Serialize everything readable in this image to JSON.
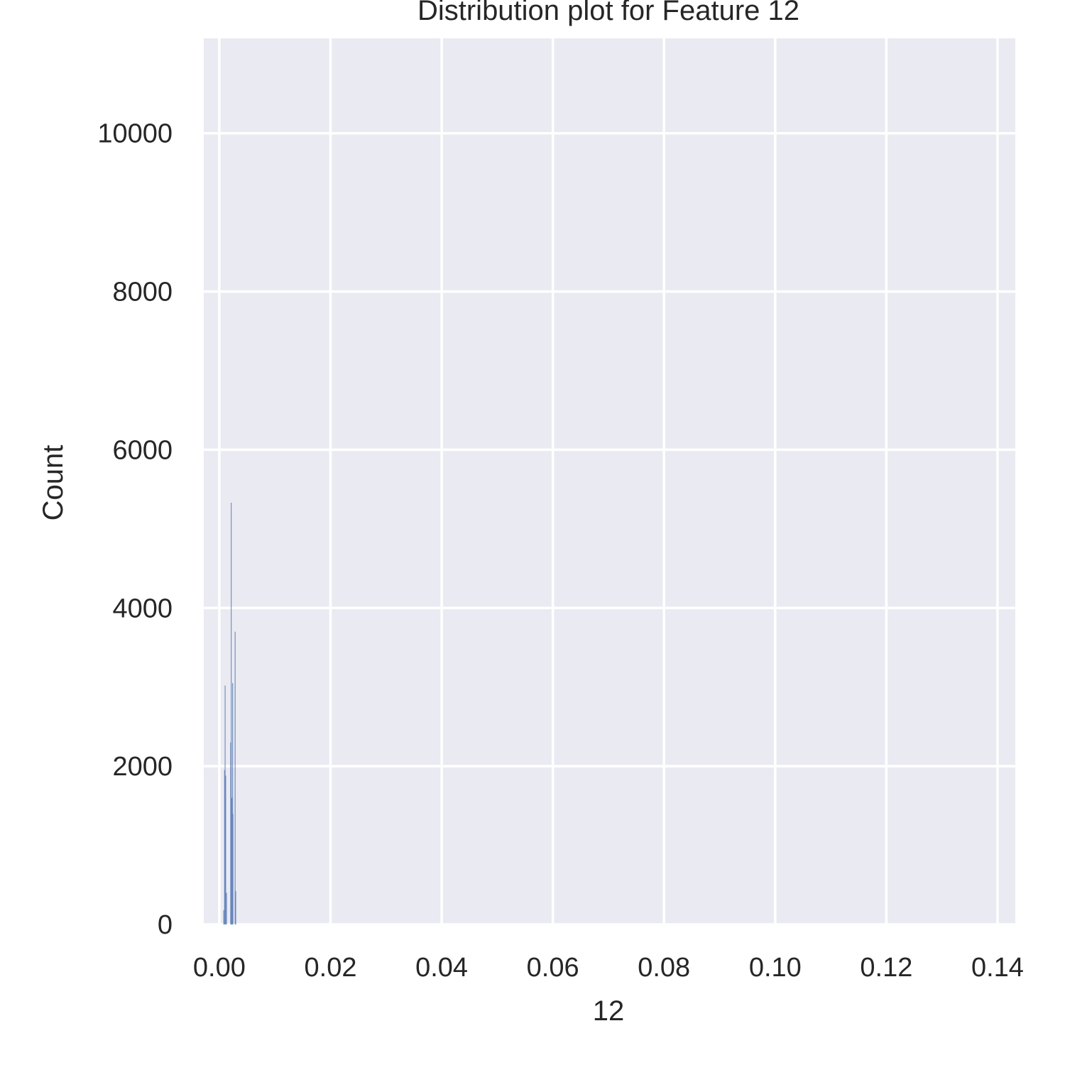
{
  "chart_data": {
    "type": "bar",
    "title": "Distribution plot for Feature 12",
    "xlabel": "12",
    "ylabel": "Count",
    "xlim": [
      -0.0028,
      0.1432
    ],
    "ylim": [
      0,
      11200
    ],
    "xticks": [
      0.0,
      0.02,
      0.04,
      0.06,
      0.08,
      0.1,
      0.12,
      0.14
    ],
    "xtick_labels": [
      "0.00",
      "0.02",
      "0.04",
      "0.06",
      "0.08",
      "0.10",
      "0.12",
      "0.14"
    ],
    "yticks": [
      0,
      2000,
      4000,
      6000,
      8000,
      10000
    ],
    "ytick_labels": [
      "0",
      "2000",
      "4000",
      "6000",
      "8000",
      "10000"
    ],
    "grid": true,
    "bar_color": "#4c72b0",
    "background_color": "#eaeaf2",
    "bins": [
      {
        "x": 0.00075,
        "count": 180
      },
      {
        "x": 0.0009,
        "count": 1950
      },
      {
        "x": 0.001,
        "count": 3020
      },
      {
        "x": 0.0011,
        "count": 1880
      },
      {
        "x": 0.00125,
        "count": 400
      },
      {
        "x": 0.002,
        "count": 2300
      },
      {
        "x": 0.0021,
        "count": 5330
      },
      {
        "x": 0.0022,
        "count": 1600
      },
      {
        "x": 0.00235,
        "count": 3050
      },
      {
        "x": 0.0024,
        "count": 1400
      },
      {
        "x": 0.0028,
        "count": 3700
      },
      {
        "x": 0.0029,
        "count": 420
      }
    ]
  }
}
